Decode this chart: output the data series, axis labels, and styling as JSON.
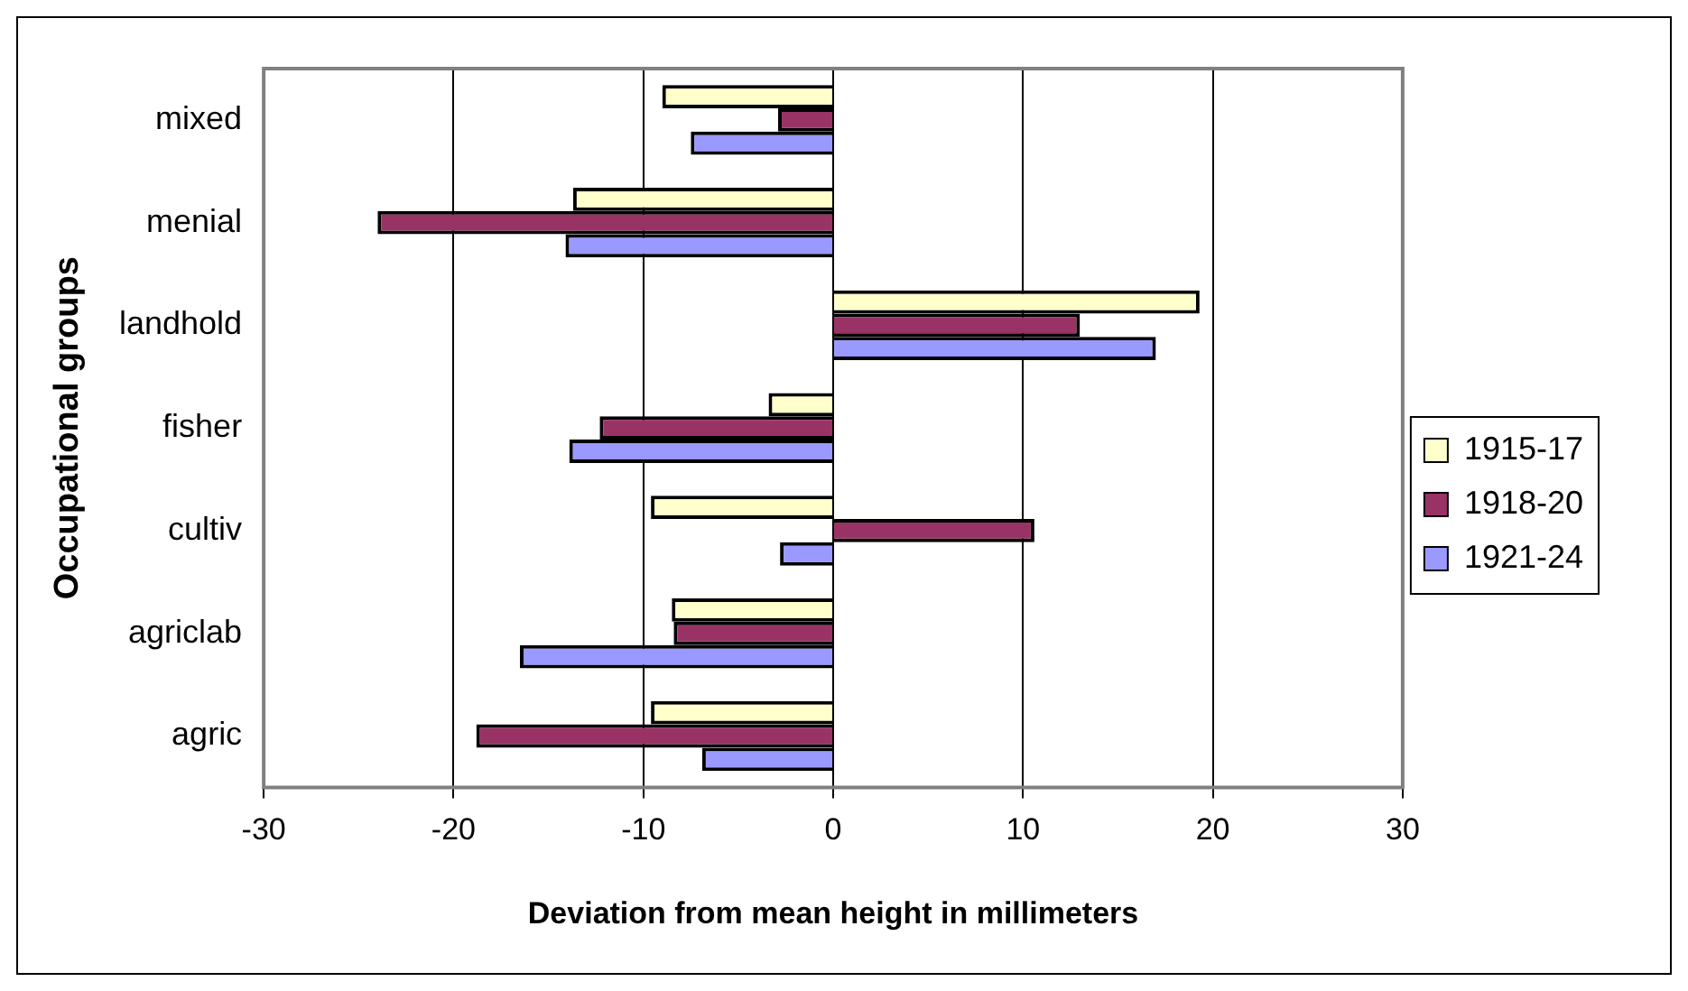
{
  "chart_data": {
    "type": "bar",
    "orientation": "horizontal",
    "categories": [
      "mixed",
      "menial",
      "landhold",
      "fisher",
      "cultiv",
      "agriclab",
      "agric"
    ],
    "series": [
      {
        "name": "1915-17",
        "color": "#ffffcc",
        "values": [
          -9.0,
          -13.7,
          19.3,
          -3.4,
          -9.6,
          -8.5,
          -9.6
        ]
      },
      {
        "name": "1918-20",
        "color": "#993366",
        "values": [
          -2.9,
          -24.0,
          13.0,
          -12.3,
          10.6,
          -8.4,
          -18.8
        ]
      },
      {
        "name": "1921-24",
        "color": "#9999ff",
        "values": [
          -7.5,
          -14.1,
          17.0,
          -13.9,
          -2.8,
          -16.5,
          -6.9
        ]
      }
    ],
    "xlim": [
      -30,
      30
    ],
    "xticks": [
      -30,
      -20,
      -10,
      0,
      10,
      20,
      30
    ],
    "grid": "x",
    "legend": "right",
    "xlabel": "Deviation from mean height in millimeters",
    "ylabel": "Occupational groups"
  }
}
